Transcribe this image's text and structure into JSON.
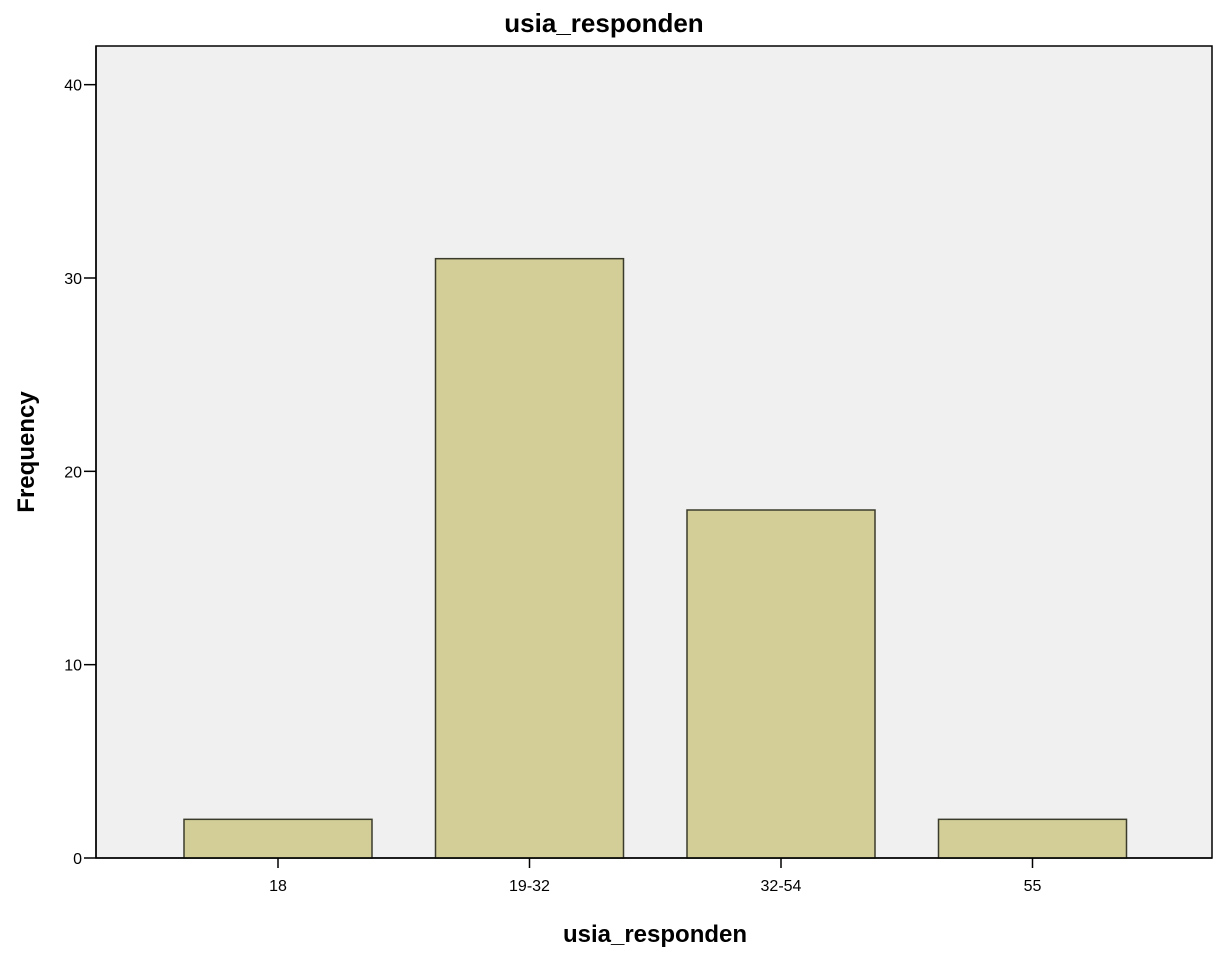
{
  "chart_data": {
    "type": "bar",
    "title": "usia_responden",
    "xlabel": "usia_responden",
    "ylabel": "Frequency",
    "categories": [
      "18",
      "19-32",
      "32-54",
      "55"
    ],
    "values": [
      2,
      31,
      18,
      2
    ],
    "ylim": [
      0,
      42
    ],
    "yticks": [
      0,
      10,
      20,
      30,
      40
    ],
    "grid": false,
    "legend": "none",
    "colors": {
      "plot_background": "#f0f0f0",
      "bar_fill": "#d3ce97",
      "bar_stroke": "#3b3b2b",
      "axis": "#000000"
    }
  }
}
